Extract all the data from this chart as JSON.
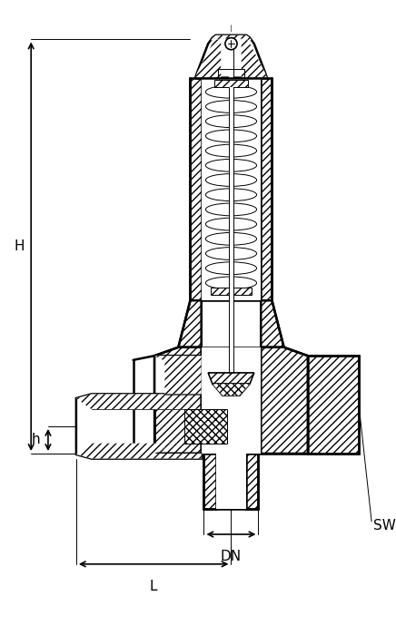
{
  "background_color": "#ffffff",
  "line_color": "#000000",
  "fig_width": 4.36,
  "fig_height": 7.0,
  "dpi": 100,
  "labels": {
    "H": "H",
    "h": "h",
    "DN": "DN",
    "L": "L",
    "SW": "SW"
  },
  "font_size_labels": 11,
  "lw_thick": 1.8,
  "lw_med": 1.2,
  "lw_thin": 0.7
}
